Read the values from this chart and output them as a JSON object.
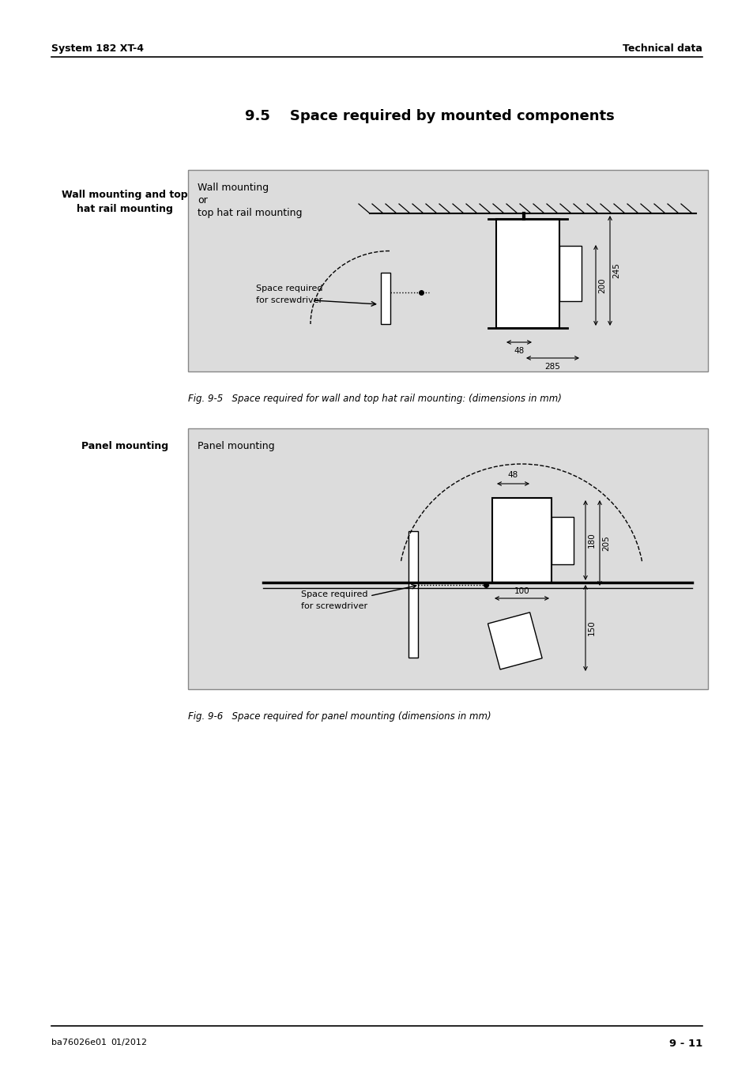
{
  "page_title_left": "System 182 XT-4",
  "page_title_right": "Technical data",
  "section_title": "9.5    Space required by mounted components",
  "left_label_1_line1": "Wall mounting and top",
  "left_label_1_line2": "hat rail mounting",
  "left_label_2": "Panel mounting",
  "fig1_title": "Wall mounting",
  "fig1_subtitle_line1": "or",
  "fig1_subtitle_line2": "top hat rail mounting",
  "fig1_label1_line1": "Space required",
  "fig1_label1_line2": "for screwdriver",
  "fig1_dim1": "48",
  "fig1_dim2": "285",
  "fig1_dim3": "200",
  "fig1_dim4": "245",
  "fig1_caption": "Fig. 9-5   Space required for wall and top hat rail mounting: (dimensions in mm)",
  "fig2_title": "Panel mounting",
  "fig2_label1_line1": "Space required",
  "fig2_label1_line2": "for screwdriver",
  "fig2_dim1": "48",
  "fig2_dim2": "100",
  "fig2_dim3": "180",
  "fig2_dim4": "205",
  "fig2_dim5": "150",
  "fig2_caption": "Fig. 9-6   Space required for panel mounting (dimensions in mm)",
  "footer_left1": "ba76026e01",
  "footer_left2": "01/2012",
  "footer_right": "9 - 11",
  "bg_color": "#ffffff",
  "box_bg": "#dcdcdc",
  "text_color": "#000000"
}
